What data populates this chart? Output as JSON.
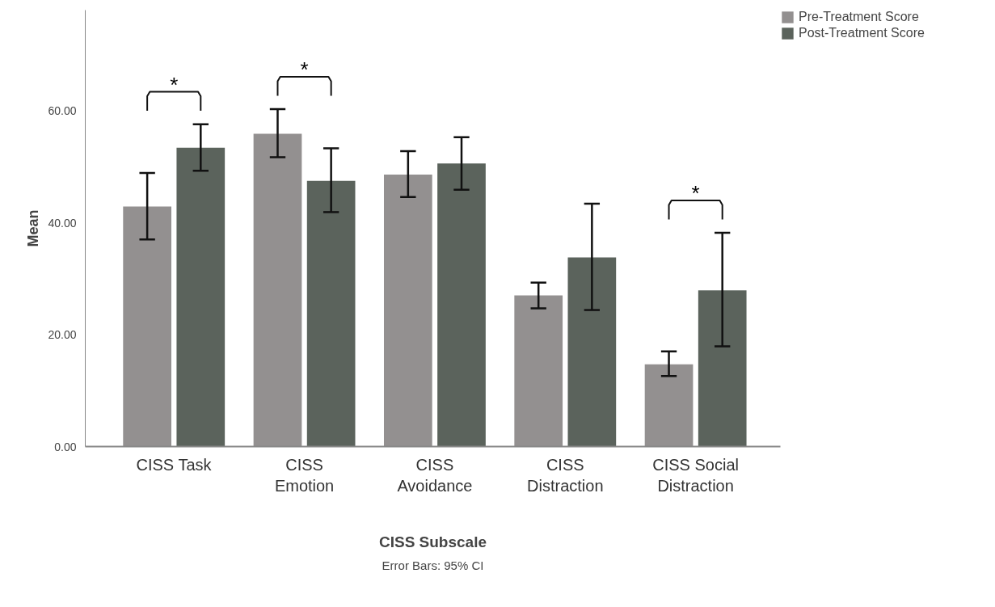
{
  "chart_data": {
    "type": "bar",
    "xlabel": "CISS Subscale",
    "ylabel": "Mean",
    "categories": [
      "CISS Task",
      "CISS Emotion",
      "CISS Avoidance",
      "CISS Distraction",
      "CISS Social Distraction"
    ],
    "series": [
      {
        "name": "Pre-Treatment Score",
        "color": "#939090",
        "values": [
          42.9,
          55.9,
          48.6,
          27.0,
          14.7
        ],
        "errors": [
          [
            37.0,
            48.9
          ],
          [
            51.7,
            60.3
          ],
          [
            44.6,
            52.8
          ],
          [
            24.7,
            29.3
          ],
          [
            12.6,
            17.0
          ]
        ]
      },
      {
        "name": "Post-Treatment Score",
        "color": "#5b635c",
        "values": [
          53.4,
          47.5,
          50.6,
          33.8,
          27.9
        ],
        "errors": [
          [
            49.3,
            57.6
          ],
          [
            41.9,
            53.3
          ],
          [
            45.9,
            55.3
          ],
          [
            24.4,
            43.4
          ],
          [
            17.9,
            38.2
          ]
        ]
      }
    ],
    "ylim": [
      0,
      78
    ],
    "yticks": [
      {
        "value": 0,
        "label": "0.00"
      },
      {
        "value": 20,
        "label": "20.00"
      },
      {
        "value": 40,
        "label": "40.00"
      },
      {
        "value": 60,
        "label": "60.00"
      }
    ],
    "grid": false,
    "legend": "top right",
    "annotations": [
      "*",
      "*",
      "*",
      "Error Bars: 95% CI"
    ]
  }
}
